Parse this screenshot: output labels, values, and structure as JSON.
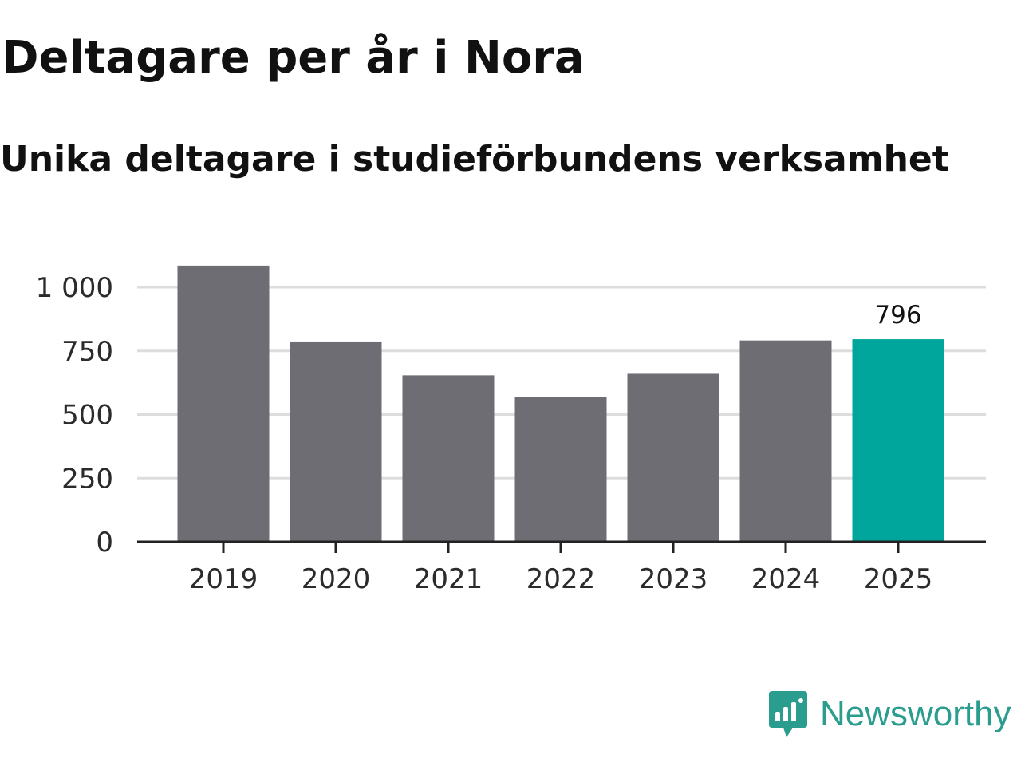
{
  "header": {
    "title": "Deltagare per år i Nora",
    "subtitle": "Unika deltagare i studieförbundens verksamhet"
  },
  "brand": {
    "name": "Newsworthy",
    "icon": "newsworthy-logo-icon",
    "color": "#2a9d8f"
  },
  "colors": {
    "bar": "#6e6d73",
    "highlight": "#00a59b",
    "grid": "#dddddd",
    "axis": "#222222"
  },
  "chart_data": {
    "type": "bar",
    "categories": [
      "2019",
      "2020",
      "2021",
      "2022",
      "2023",
      "2024",
      "2025"
    ],
    "values": [
      1085,
      787,
      654,
      568,
      660,
      791,
      796
    ],
    "highlight_index": 6,
    "data_labels": [
      {
        "index": 6,
        "text": "796"
      }
    ],
    "yticks": [
      {
        "value": 0,
        "label": "0"
      },
      {
        "value": 250,
        "label": "250"
      },
      {
        "value": 500,
        "label": "500"
      },
      {
        "value": 750,
        "label": "750"
      },
      {
        "value": 1000,
        "label": "1 000"
      }
    ],
    "ylim": [
      0,
      1100
    ],
    "grid": true,
    "legend": false
  }
}
